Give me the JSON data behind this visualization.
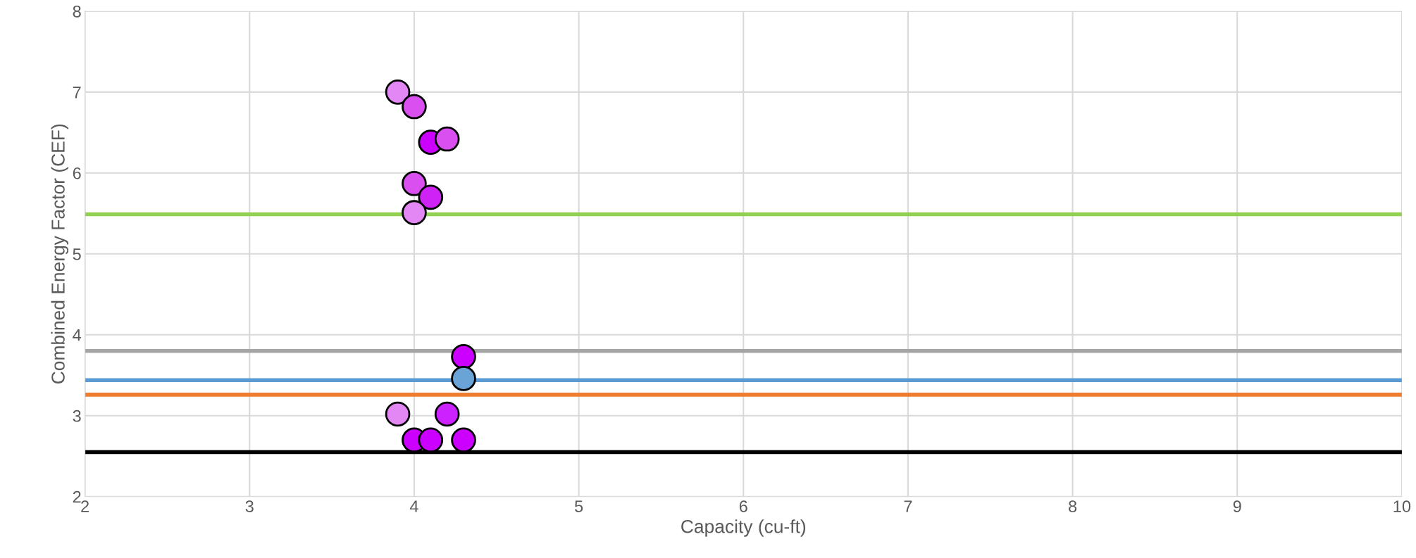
{
  "chart_data": {
    "type": "scatter",
    "xlabel": "Capacity (cu-ft)",
    "ylabel": "Combined Energy Factor (CEF)",
    "xlim": [
      2,
      10
    ],
    "xticks": [
      2,
      3,
      4,
      5,
      6,
      7,
      8,
      9,
      10
    ],
    "ylim": [
      2,
      8
    ],
    "yticks": [
      2,
      3,
      4,
      5,
      6,
      7,
      8
    ],
    "grid": true,
    "marker": "circle",
    "series": [
      {
        "x": [
          3.9,
          4.0,
          4.1,
          4.2,
          4.0,
          4.1,
          4.0,
          4.3,
          4.3,
          3.9,
          4.2,
          4.0,
          4.1,
          4.3
        ],
        "values": [
          7.0,
          6.82,
          6.38,
          6.42,
          5.87,
          5.7,
          5.51,
          3.73,
          3.46,
          3.02,
          3.02,
          2.7,
          2.7,
          2.7
        ],
        "colors": [
          "#e387f5",
          "#d94ff0",
          "#cc00ff",
          "#d94ff0",
          "#d94ff0",
          "#cf22f5",
          "#e387f5",
          "#cc00ff",
          "#6aa3d5",
          "#e387f5",
          "#cc22ff",
          "#cc00ff",
          "#cc00ff",
          "#cc00ff"
        ]
      }
    ],
    "ref_lines": [
      {
        "axis": "y",
        "value": 5.49,
        "color": "#92d050"
      },
      {
        "axis": "y",
        "value": 3.8,
        "color": "#a5a5a5"
      },
      {
        "axis": "y",
        "value": 3.44,
        "color": "#5b9bd5"
      },
      {
        "axis": "y",
        "value": 3.26,
        "color": "#ed7d31"
      },
      {
        "axis": "y",
        "value": 2.55,
        "color": "#000000"
      }
    ]
  }
}
